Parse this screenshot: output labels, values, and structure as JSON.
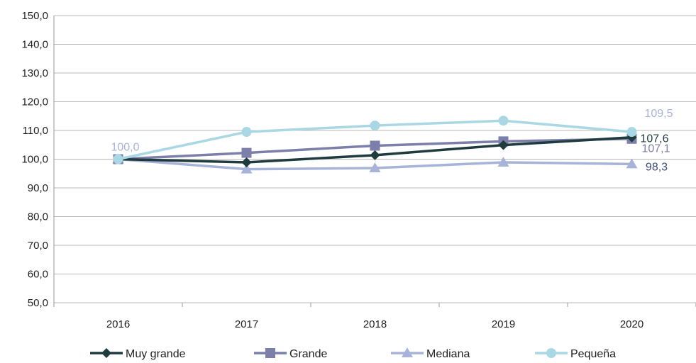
{
  "chart_data": {
    "type": "line",
    "title": "",
    "xlabel": "",
    "ylabel": "",
    "categories": [
      "2016",
      "2017",
      "2018",
      "2019",
      "2020"
    ],
    "ylim": [
      50,
      150
    ],
    "y_ticks": [
      "50,0",
      "60,0",
      "70,0",
      "80,0",
      "90,0",
      "100,0",
      "110,0",
      "120,0",
      "130,0",
      "140,0",
      "150,0"
    ],
    "grid": "horizontal",
    "legend_position": "bottom",
    "series": [
      {
        "name": "Muy grande",
        "values": [
          100.0,
          98.9,
          101.4,
          104.9,
          107.6
        ],
        "color": "#1f3b3e",
        "marker": "diamond"
      },
      {
        "name": "Grande",
        "values": [
          100.0,
          102.2,
          104.7,
          106.2,
          107.1
        ],
        "color": "#7b7faa",
        "marker": "square"
      },
      {
        "name": "Mediana",
        "values": [
          100.0,
          96.5,
          96.9,
          98.9,
          98.3
        ],
        "color": "#a8b3d9",
        "marker": "triangle"
      },
      {
        "name": "Pequeña",
        "values": [
          100.0,
          109.5,
          111.7,
          113.4,
          109.5
        ],
        "color": "#a9d8e4",
        "marker": "circle"
      }
    ],
    "data_labels": [
      {
        "text": "100,0",
        "category": "2016",
        "value": 100.0,
        "color": "#a8b3d9",
        "size": "large"
      },
      {
        "text": "109,5",
        "category": "2020",
        "value": 109.5,
        "color": "#a8b3d9",
        "size": "normal"
      },
      {
        "text": "107,6",
        "category": "2020",
        "value": 107.6,
        "color": "#1f3b3e",
        "size": "normal"
      },
      {
        "text": "107,1",
        "category": "2020",
        "value": 107.1,
        "color": "#7b7faa",
        "size": "normal"
      },
      {
        "text": "98,3",
        "category": "2020",
        "value": 98.3,
        "color": "#3a4a7e",
        "size": "normal"
      }
    ]
  }
}
